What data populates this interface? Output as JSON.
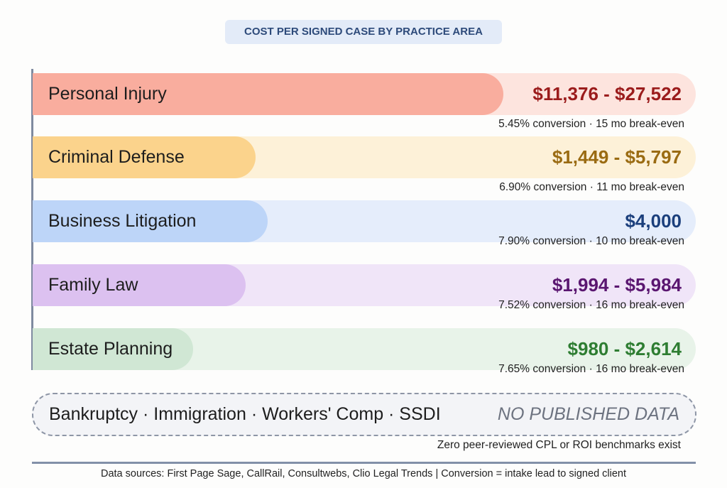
{
  "chart_data": {
    "type": "bar",
    "title": "COST PER SIGNED CASE BY PRACTICE AREA",
    "categories": [
      "Personal Injury",
      "Criminal Defense",
      "Business Litigation",
      "Family Law",
      "Estate Planning"
    ],
    "series": [
      {
        "values_label": [
          "$11,376 - $27,522",
          "$1,449 - $5,797",
          "$4,000",
          "$1,994 - $5,984",
          "$980 - $2,614"
        ],
        "low": [
          11376,
          1449,
          4000,
          1994,
          980
        ],
        "high": [
          27522,
          5797,
          4000,
          5984,
          2614
        ],
        "bar_fill": [
          0.71,
          0.336,
          0.354,
          0.321,
          0.242
        ]
      }
    ],
    "details": [
      "5.45% conversion · 15 mo break-even",
      "6.90% conversion · 11 mo break-even",
      "7.90% conversion · 10 mo break-even",
      "7.52% conversion · 16 mo break-even",
      "7.65% conversion · 16 mo break-even"
    ],
    "colors": [
      {
        "fill": "#f9ad9e",
        "track": "#fde4de",
        "text": "#9b1c1c"
      },
      {
        "fill": "#fbd38c",
        "track": "#fdf1d8",
        "text": "#9a6b12"
      },
      {
        "fill": "#bdd5f8",
        "track": "#e5edfb",
        "text": "#1b3f7c"
      },
      {
        "fill": "#dcc1f0",
        "track": "#f0e5f8",
        "text": "#5a1670"
      },
      {
        "fill": "#d0e7d4",
        "track": "#e8f3e9",
        "text": "#2e7d32"
      }
    ]
  },
  "no_data": {
    "areas": "Bankruptcy · Immigration · Workers' Comp · SSDI",
    "label": "NO PUBLISHED DATA",
    "note": "Zero peer-reviewed CPL or ROI benchmarks exist"
  },
  "footer": "Data sources: First Page Sage, CallRail, Consultwebs, Clio Legal Trends | Conversion = intake lead to signed client"
}
